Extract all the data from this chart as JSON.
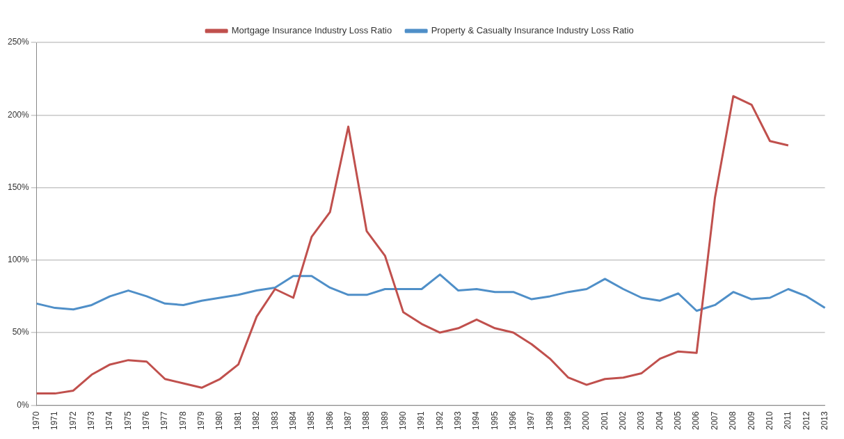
{
  "chart_data": {
    "type": "line",
    "categories": [
      "1970",
      "1971",
      "1972",
      "1973",
      "1974",
      "1975",
      "1976",
      "1977",
      "1978",
      "1979",
      "1980",
      "1981",
      "1982",
      "1983",
      "1984",
      "1985",
      "1986",
      "1987",
      "1988",
      "1989",
      "1990",
      "1991",
      "1992",
      "1993",
      "1994",
      "1995",
      "1996",
      "1997",
      "1998",
      "1999",
      "2000",
      "2001",
      "2002",
      "2003",
      "2004",
      "2005",
      "2006",
      "2007",
      "2008",
      "2009",
      "2010",
      "2011",
      "2012",
      "2013"
    ],
    "series": [
      {
        "name": "Mortgage Insurance Industry Loss Ratio",
        "color": "#c0504d",
        "values": [
          8,
          8,
          10,
          21,
          28,
          31,
          30,
          18,
          15,
          12,
          18,
          28,
          61,
          80,
          74,
          116,
          133,
          192,
          120,
          103,
          64,
          56,
          50,
          53,
          59,
          53,
          50,
          42,
          32,
          19,
          14,
          18,
          19,
          22,
          32,
          37,
          36,
          143,
          213,
          207,
          182,
          179,
          null,
          null
        ]
      },
      {
        "name": "Property & Casualty Insurance Industry Loss Ratio",
        "color": "#4f8fc8",
        "values": [
          70,
          67,
          66,
          69,
          75,
          79,
          75,
          70,
          69,
          72,
          74,
          76,
          79,
          81,
          89,
          89,
          81,
          76,
          76,
          80,
          80,
          80,
          90,
          79,
          80,
          78,
          78,
          73,
          75,
          78,
          80,
          87,
          80,
          74,
          72,
          77,
          65,
          69,
          78,
          73,
          74,
          80,
          75,
          67
        ]
      }
    ],
    "ylim": [
      0,
      250
    ],
    "yticks": [
      {
        "value": 0,
        "label": "0%"
      },
      {
        "value": 50,
        "label": "50%"
      },
      {
        "value": 100,
        "label": "100%"
      },
      {
        "value": 150,
        "label": "150%"
      },
      {
        "value": 200,
        "label": "200%"
      },
      {
        "value": 250,
        "label": "250%"
      }
    ],
    "grid": "y",
    "legend": "top",
    "marker": "none",
    "line_style": "solid"
  }
}
